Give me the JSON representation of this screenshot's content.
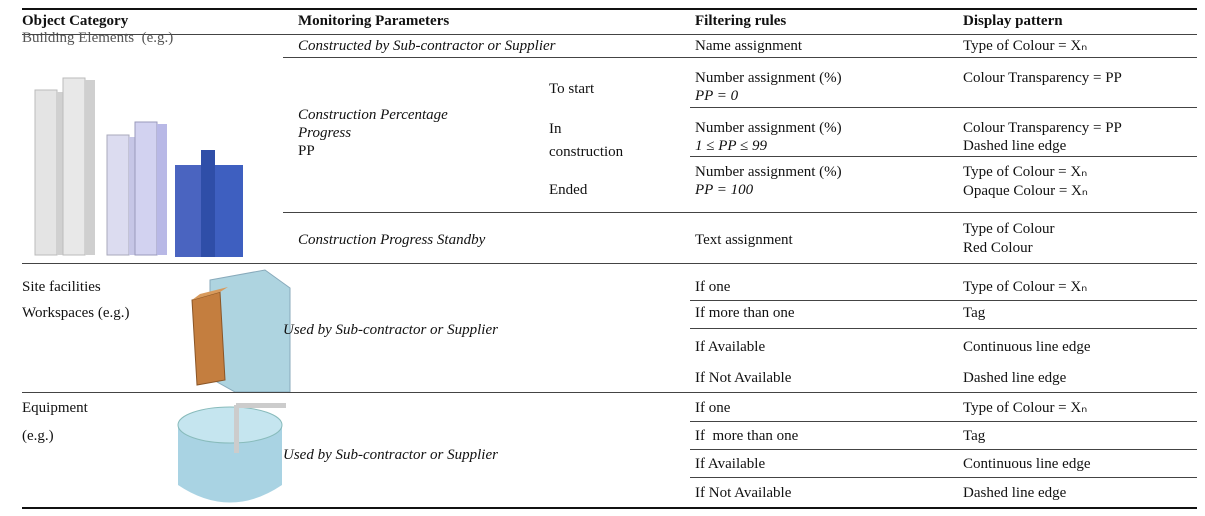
{
  "table": {
    "headers": [
      "Object Category",
      "Monitoring Parameters",
      "Filtering rules",
      "Display pattern"
    ],
    "building": {
      "category": "Building Elements  (e.g.)",
      "parameters": {
        "constructed": "Constructed by Sub-contractor or Supplier",
        "progress": [
          "Construction Percentage",
          "Progress",
          "PP"
        ],
        "stages": [
          [
            "To start"
          ],
          [
            "In",
            "construction"
          ],
          [
            "Ended"
          ]
        ],
        "standby": "Construction Progress Standby"
      },
      "filters": [
        [
          "Name assignment"
        ],
        [
          "Number assignment (%)",
          "PP = 0"
        ],
        [
          "Number assignment (%)",
          "1 ≤ PP ≤ 99"
        ],
        [
          "Number assignment (%)",
          "PP = 100"
        ],
        [
          "Text assignment"
        ]
      ],
      "display": [
        [
          "Type of Colour = Xₙ"
        ],
        [
          "Colour Transparency = PP"
        ],
        [
          "Colour Transparency = PP",
          "Dashed line edge"
        ],
        [
          "Type of Colour = Xₙ",
          "Opaque Colour = Xₙ"
        ],
        [
          "Type of Colour",
          "Red Colour"
        ]
      ]
    },
    "site": {
      "category": [
        "Site facilities",
        "Workspaces (e.g.)"
      ],
      "parameter": "Used by Sub-contractor or Supplier",
      "filters": [
        "If one",
        "If more than one",
        "If Available",
        "If Not Available"
      ],
      "display": [
        "Type of Colour = Xₙ",
        "Tag",
        "Continuous line edge",
        "Dashed line edge"
      ]
    },
    "equipment": {
      "category": [
        "Equipment",
        "(e.g.)"
      ],
      "parameter": "Used by Sub-contractor or Supplier",
      "filters": [
        "If one",
        "If  more than one",
        "If Available",
        "If Not Available"
      ],
      "display": [
        "Type of Colour = Xₙ",
        "Tag",
        "Continuous line edge",
        "Dashed line edge"
      ]
    }
  }
}
